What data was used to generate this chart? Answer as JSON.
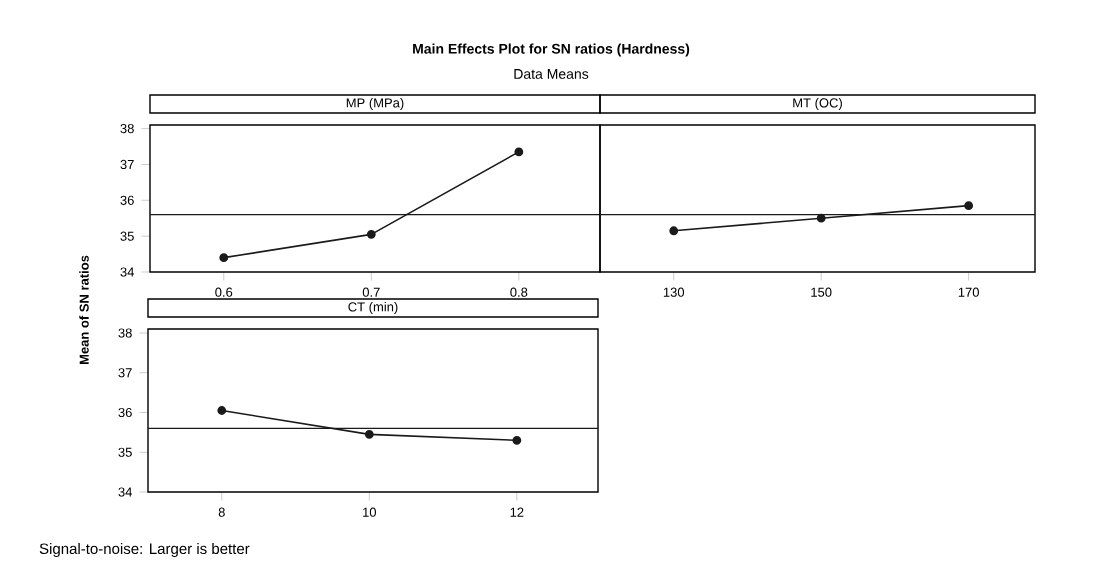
{
  "chart_data": [
    {
      "type": "other",
      "title": "Main Effects Plot for SN ratios (Hardness)",
      "subtitle": "Data Means",
      "ylabel": "Mean of SN ratios",
      "annotations": [
        "Signal-to-noise: Larger is better"
      ]
    },
    {
      "type": "line",
      "title": "MP (MPa)",
      "categories": [
        "0.6",
        "0.7",
        "0.8"
      ],
      "values": [
        34.4,
        35.05,
        37.35
      ],
      "color": "#1a1a1a",
      "marker": "circle",
      "ylim": [
        34,
        38.1
      ],
      "yticks": [
        34,
        35,
        36,
        37,
        38
      ],
      "ref_lines": [
        {
          "axis": "y",
          "value": 35.6,
          "color": "#1a1a1a"
        }
      ]
    },
    {
      "type": "line",
      "title": "MT (OC)",
      "categories": [
        "130",
        "150",
        "170"
      ],
      "values": [
        35.15,
        35.5,
        35.85
      ],
      "color": "#1a1a1a",
      "marker": "circle",
      "ylim": [
        34,
        38.1
      ],
      "yticks": [
        34,
        35,
        36,
        37,
        38
      ],
      "tick_labels": "x",
      "ref_lines": [
        {
          "axis": "y",
          "value": 35.6,
          "color": "#1a1a1a"
        }
      ]
    },
    {
      "type": "line",
      "title": "CT (min)",
      "categories": [
        "8",
        "10",
        "12"
      ],
      "values": [
        36.05,
        35.45,
        35.3
      ],
      "color": "#1a1a1a",
      "marker": "circle",
      "ylim": [
        34,
        38.1
      ],
      "yticks": [
        34,
        35,
        36,
        37,
        38
      ],
      "ref_lines": [
        {
          "axis": "y",
          "value": 35.6,
          "color": "#1a1a1a"
        }
      ]
    }
  ]
}
